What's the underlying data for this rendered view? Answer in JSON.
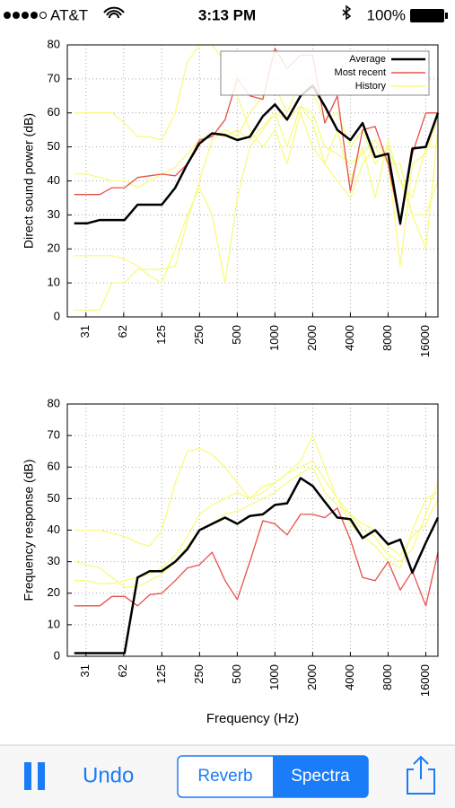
{
  "status_bar": {
    "carrier": "AT&T",
    "time": "3:13 PM",
    "battery": "100%"
  },
  "chart_data": [
    {
      "type": "line",
      "ylabel": "Direct sound power (dB)",
      "xscale": "log",
      "grid": true,
      "legend": "upper right",
      "x": [
        25,
        31.5,
        40,
        50,
        63,
        80,
        100,
        125,
        160,
        200,
        250,
        315,
        400,
        500,
        630,
        800,
        1000,
        1250,
        1600,
        2000,
        2500,
        3150,
        4000,
        5000,
        6300,
        8000,
        10000,
        12500,
        16000,
        20000
      ],
      "xlim": [
        22,
        20000
      ],
      "xticks": [
        31,
        62,
        125,
        250,
        500,
        1000,
        2000,
        4000,
        8000,
        16000
      ],
      "ylim": [
        0,
        80
      ],
      "yticks": [
        0,
        10,
        20,
        30,
        40,
        50,
        60,
        70,
        80
      ],
      "series": [
        {
          "name": "Average",
          "color": "#000000",
          "values": [
            27.5,
            27.5,
            28.5,
            28.5,
            28.5,
            33,
            33,
            33,
            38,
            45,
            51,
            54,
            53.5,
            52,
            53,
            59,
            62.5,
            58,
            65,
            68,
            62,
            55,
            52,
            57,
            47,
            48,
            27.5,
            49.5,
            50,
            60
          ]
        },
        {
          "name": "Most recent",
          "color": "#e8504a",
          "values": [
            36,
            36,
            36,
            38,
            38,
            41,
            41.5,
            42,
            41.5,
            45,
            52,
            53,
            58,
            70,
            65,
            64,
            79,
            73,
            77,
            77,
            57,
            65,
            37,
            55,
            56,
            45,
            27,
            48,
            60,
            60
          ]
        },
        {
          "name": "History",
          "color": "#fafa80",
          "values": [
            [
              2,
              2,
              2,
              10,
              10,
              14,
              14,
              14,
              15,
              28,
              40,
              52,
              55,
              53,
              60,
              65,
              68,
              60,
              70,
              66,
              58,
              60,
              50,
              55,
              45,
              50,
              40,
              30,
              20,
              55
            ],
            [
              18,
              18,
              18,
              18,
              17,
              15,
              12,
              10,
              20,
              30,
              38,
              30,
              10,
              35,
              50,
              55,
              60,
              50,
              62,
              57,
              45,
              40,
              35,
              45,
              50,
              45,
              45,
              30,
              30,
              40
            ],
            [
              60,
              60,
              60,
              60,
              57,
              53,
              53,
              52,
              60,
              75,
              80,
              80,
              75,
              65,
              55,
              50,
              55,
              45,
              60,
              50,
              45,
              55,
              40,
              50,
              35,
              52,
              40,
              35,
              50,
              50
            ],
            [
              42,
              42,
              41,
              40,
              40,
              38,
              40,
              42,
              44,
              48,
              52,
              54,
              53,
              55,
              52,
              56,
              60,
              58,
              62,
              60,
              50,
              48,
              45,
              48,
              52,
              46,
              15,
              45,
              48,
              58
            ]
          ]
        }
      ]
    },
    {
      "type": "line",
      "ylabel": "Frequency response (dB)",
      "xlabel": "Frequency (Hz)",
      "xscale": "log",
      "grid": true,
      "x": [
        25,
        31.5,
        40,
        50,
        63,
        80,
        100,
        125,
        160,
        200,
        250,
        315,
        400,
        500,
        630,
        800,
        1000,
        1250,
        1600,
        2000,
        2500,
        3150,
        4000,
        5000,
        6300,
        8000,
        10000,
        12500,
        16000,
        20000
      ],
      "xlim": [
        22,
        20000
      ],
      "xticks": [
        31,
        62,
        125,
        250,
        500,
        1000,
        2000,
        4000,
        8000,
        16000
      ],
      "ylim": [
        0,
        80
      ],
      "yticks": [
        0,
        10,
        20,
        30,
        40,
        50,
        60,
        70,
        80
      ],
      "series": [
        {
          "color": "#000000",
          "values": [
            1,
            1,
            1,
            1,
            1,
            25,
            27,
            27,
            30,
            34,
            40,
            42,
            44,
            42,
            44.5,
            45,
            48,
            48.5,
            56.5,
            54,
            49,
            44,
            43.5,
            37.5,
            40,
            35.5,
            37,
            26.5,
            36,
            44
          ]
        },
        {
          "color": "#e8504a",
          "values": [
            16,
            16,
            16,
            19,
            19,
            16,
            19.5,
            20,
            24,
            28,
            29,
            33,
            24,
            18,
            30,
            43,
            42,
            38.5,
            45,
            45,
            44,
            47,
            37,
            25,
            24,
            30,
            21,
            27,
            16,
            33
          ]
        },
        {
          "color": "#fafa80",
          "values": [
            [
              40,
              40,
              40,
              39,
              38,
              36,
              35,
              40,
              55,
              65,
              66,
              64,
              60,
              55,
              50,
              52,
              55,
              58,
              62,
              70,
              60,
              50,
              45,
              40,
              38,
              32,
              30,
              34,
              45,
              55
            ],
            [
              24,
              24,
              23,
              23,
              24,
              25,
              26,
              28,
              32,
              38,
              45,
              48,
              50,
              52,
              50,
              54,
              55,
              58,
              60,
              62,
              56,
              50,
              42,
              38,
              35,
              30,
              28,
              40,
              50,
              52
            ],
            [
              30,
              29,
              28,
              25,
              22,
              22,
              24,
              26,
              30,
              35,
              40,
              42,
              45,
              46,
              48,
              50,
              52,
              55,
              58,
              60,
              52,
              48,
              45,
              42,
              40,
              35,
              32,
              38,
              42,
              50
            ]
          ]
        }
      ]
    }
  ],
  "toolbar": {
    "undo": "Undo",
    "segments": [
      "Reverb",
      "Spectra"
    ]
  }
}
